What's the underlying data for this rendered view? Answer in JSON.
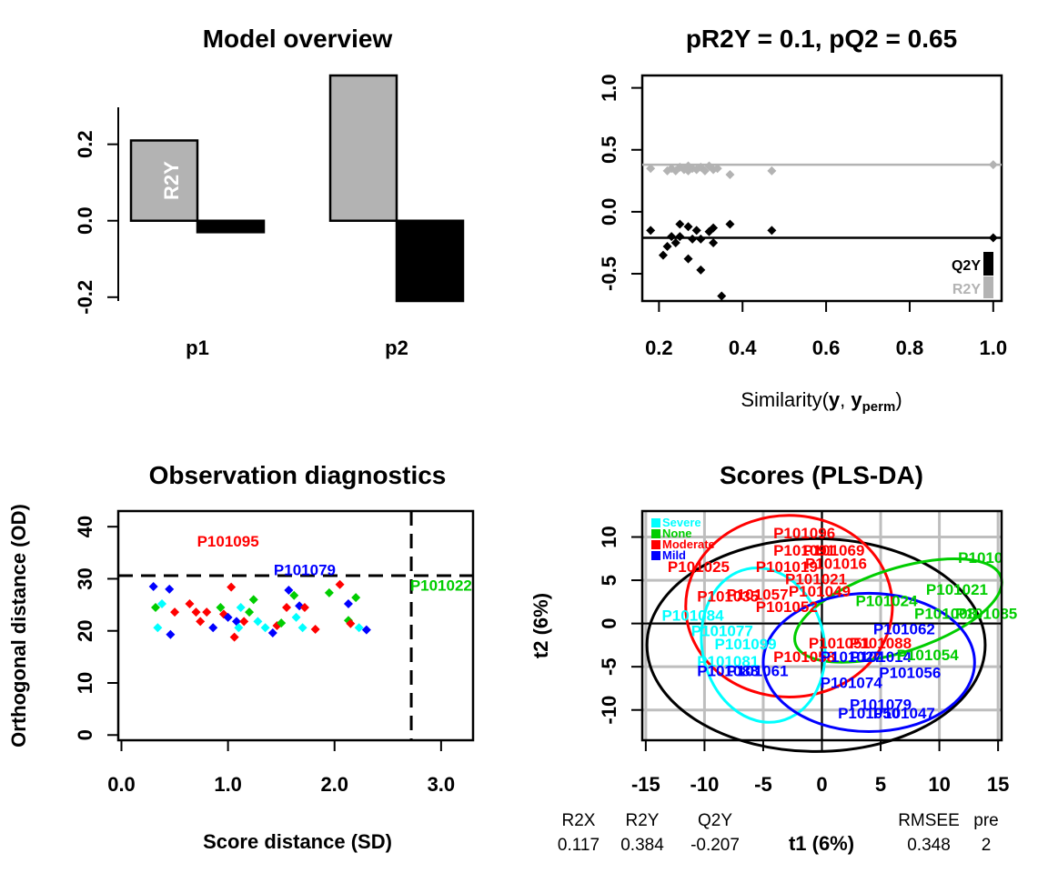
{
  "chart_data": [
    {
      "type": "bar",
      "title": "Model overview",
      "categories": [
        "p1",
        "p2"
      ],
      "series": [
        {
          "name": "R2Y",
          "values": [
            0.21,
            0.38
          ],
          "color": "#b3b3b3"
        },
        {
          "name": "Q2Y",
          "values": [
            -0.03,
            -0.21
          ],
          "color": "#000000"
        }
      ],
      "ylim": [
        -0.21,
        0.38
      ],
      "yticks": [
        "-0.2",
        "0.0",
        "0.2"
      ],
      "bar_label": "R2Y",
      "grid": false
    },
    {
      "type": "scatter",
      "title": "pR2Y = 0.1, pQ2 = 0.65",
      "xlabel": {
        "prefix": "Similarity(",
        "y": "y",
        "sep": ", ",
        "yperm": "y",
        "sub": "perm",
        "suffix": ")"
      },
      "xlim": [
        0.16,
        1.02
      ],
      "ylim": [
        -0.72,
        1.1
      ],
      "xticks": [
        "0.2",
        "0.4",
        "0.6",
        "0.8",
        "1.0"
      ],
      "yticks": [
        "-0.5",
        "0.0",
        "0.5",
        "1.0"
      ],
      "series": [
        {
          "name": "R2Y",
          "color": "#b3b3b3",
          "line": 0.38,
          "x": [
            0.18,
            0.22,
            0.23,
            0.24,
            0.25,
            0.26,
            0.27,
            0.27,
            0.28,
            0.29,
            0.3,
            0.31,
            0.32,
            0.33,
            0.34,
            0.37,
            0.47,
            1.0
          ],
          "y": [
            0.35,
            0.33,
            0.35,
            0.33,
            0.36,
            0.34,
            0.33,
            0.37,
            0.35,
            0.34,
            0.36,
            0.33,
            0.37,
            0.34,
            0.35,
            0.3,
            0.33,
            0.38
          ]
        },
        {
          "name": "Q2Y",
          "color": "#000000",
          "line": -0.21,
          "x": [
            0.18,
            0.21,
            0.22,
            0.23,
            0.24,
            0.25,
            0.25,
            0.27,
            0.27,
            0.28,
            0.29,
            0.3,
            0.3,
            0.32,
            0.33,
            0.33,
            0.35,
            0.37,
            0.47,
            1.0
          ],
          "y": [
            -0.15,
            -0.35,
            -0.28,
            -0.2,
            -0.25,
            -0.1,
            -0.2,
            -0.12,
            -0.38,
            -0.22,
            -0.15,
            -0.47,
            -0.22,
            -0.16,
            -0.25,
            -0.13,
            -0.68,
            -0.1,
            -0.15,
            -0.21
          ]
        }
      ],
      "legend": {
        "position": "bottom-right",
        "items": [
          "Q2Y",
          "R2Y"
        ]
      }
    },
    {
      "type": "scatter",
      "title": "Observation diagnostics",
      "xlabel": "Score distance (SD)",
      "ylabel": "Orthogonal distance (OD)",
      "xlim": [
        -0.03,
        3.3
      ],
      "ylim": [
        -1,
        43
      ],
      "xticks": [
        "0.0",
        "1.0",
        "2.0",
        "3.0"
      ],
      "yticks": [
        "0",
        "10",
        "20",
        "30",
        "40"
      ],
      "thresholds": {
        "sd": 2.72,
        "od": 30.6
      },
      "groups": [
        {
          "name": "Severe",
          "color": "#00ffff"
        },
        {
          "name": "None",
          "color": "#00cd00"
        },
        {
          "name": "Moderate",
          "color": "#ff0000"
        },
        {
          "name": "Mild",
          "color": "#0000ff"
        }
      ],
      "points": [
        {
          "x": 0.3,
          "y": 28.5,
          "g": 3
        },
        {
          "x": 0.45,
          "y": 28.0,
          "g": 3
        },
        {
          "x": 0.32,
          "y": 24.5,
          "g": 1
        },
        {
          "x": 0.38,
          "y": 25.2,
          "g": 0
        },
        {
          "x": 0.5,
          "y": 23.6,
          "g": 2
        },
        {
          "x": 0.34,
          "y": 20.6,
          "g": 0
        },
        {
          "x": 0.46,
          "y": 19.3,
          "g": 3
        },
        {
          "x": 0.64,
          "y": 25.2,
          "g": 2
        },
        {
          "x": 0.7,
          "y": 23.6,
          "g": 2
        },
        {
          "x": 0.74,
          "y": 21.8,
          "g": 2
        },
        {
          "x": 0.8,
          "y": 23.6,
          "g": 2
        },
        {
          "x": 0.86,
          "y": 20.6,
          "g": 3
        },
        {
          "x": 0.93,
          "y": 24.5,
          "g": 1
        },
        {
          "x": 0.96,
          "y": 23.2,
          "g": 2
        },
        {
          "x": 1.0,
          "y": 22.6,
          "g": 3
        },
        {
          "x": 1.03,
          "y": 28.4,
          "g": 2
        },
        {
          "x": 1.06,
          "y": 18.8,
          "g": 2
        },
        {
          "x": 1.08,
          "y": 21.8,
          "g": 3
        },
        {
          "x": 1.1,
          "y": 20.6,
          "g": 0
        },
        {
          "x": 1.12,
          "y": 24.5,
          "g": 0
        },
        {
          "x": 1.15,
          "y": 21.8,
          "g": 2
        },
        {
          "x": 1.2,
          "y": 23.6,
          "g": 1
        },
        {
          "x": 1.24,
          "y": 26.0,
          "g": 1
        },
        {
          "x": 1.28,
          "y": 21.8,
          "g": 0
        },
        {
          "x": 1.35,
          "y": 20.6,
          "g": 0
        },
        {
          "x": 1.42,
          "y": 19.6,
          "g": 3
        },
        {
          "x": 1.46,
          "y": 21.0,
          "g": 2
        },
        {
          "x": 1.5,
          "y": 21.5,
          "g": 1
        },
        {
          "x": 1.55,
          "y": 24.5,
          "g": 2
        },
        {
          "x": 1.57,
          "y": 27.8,
          "g": 3
        },
        {
          "x": 1.62,
          "y": 26.8,
          "g": 1
        },
        {
          "x": 1.64,
          "y": 22.6,
          "g": 0
        },
        {
          "x": 1.67,
          "y": 24.8,
          "g": 3
        },
        {
          "x": 1.7,
          "y": 20.6,
          "g": 0
        },
        {
          "x": 1.72,
          "y": 24.5,
          "g": 2
        },
        {
          "x": 1.82,
          "y": 20.3,
          "g": 2
        },
        {
          "x": 1.95,
          "y": 27.3,
          "g": 1
        },
        {
          "x": 2.05,
          "y": 28.9,
          "g": 2
        },
        {
          "x": 2.13,
          "y": 22.0,
          "g": 1
        },
        {
          "x": 2.15,
          "y": 21.4,
          "g": 2
        },
        {
          "x": 2.13,
          "y": 25.2,
          "g": 3
        },
        {
          "x": 2.2,
          "y": 26.4,
          "g": 1
        },
        {
          "x": 2.23,
          "y": 20.6,
          "g": 0
        },
        {
          "x": 2.3,
          "y": 20.2,
          "g": 3
        }
      ],
      "labels": [
        {
          "text": "P101095",
          "x": 1.0,
          "y": 37.0,
          "g": 2
        },
        {
          "text": "P101079",
          "x": 1.72,
          "y": 31.5,
          "g": 3
        },
        {
          "text": "P101022",
          "x": 3.0,
          "y": 28.5,
          "g": 1
        }
      ]
    },
    {
      "type": "scatter",
      "title": "Scores (PLS-DA)",
      "xlabel": "t1 (6%)",
      "ylabel": "t2 (6%)",
      "xlim": [
        -15.3,
        15.3
      ],
      "ylim": [
        -13.5,
        13.0
      ],
      "xticks": [
        "-15",
        "-10",
        "-5",
        "0",
        "5",
        "10",
        "15"
      ],
      "yticks": [
        "-10",
        "-5",
        "0",
        "5",
        "10"
      ],
      "grid": true,
      "legend": {
        "position": "top-left",
        "items": [
          "Severe",
          "None",
          "Moderate",
          "Mild"
        ]
      },
      "groups": [
        {
          "name": "Severe",
          "color": "#00ffff"
        },
        {
          "name": "None",
          "color": "#00cd00"
        },
        {
          "name": "Moderate",
          "color": "#ff0000"
        },
        {
          "name": "Mild",
          "color": "#0000ff"
        }
      ],
      "ellipses": [
        {
          "g": -1,
          "cx": -0.5,
          "cy": -2.5,
          "rx": 14.4,
          "ry": 12.3,
          "rot": 0
        },
        {
          "g": 2,
          "cx": -2.8,
          "cy": 2.0,
          "rx": 8.8,
          "ry": 10.5,
          "rot": 0
        },
        {
          "g": 1,
          "cx": 6.5,
          "cy": 1.5,
          "rx": 9.2,
          "ry": 4.8,
          "rot": 18
        },
        {
          "g": 0,
          "cx": -5.0,
          "cy": -2.5,
          "rx": 5.2,
          "ry": 9.0,
          "rot": 12
        },
        {
          "g": 3,
          "cx": 4.0,
          "cy": -4.5,
          "rx": 9.0,
          "ry": 8.0,
          "rot": 0
        }
      ],
      "labels": [
        {
          "text": "P101096",
          "x": -1.5,
          "y": 10.3,
          "g": 2
        },
        {
          "text": "P101091",
          "x": -1.5,
          "y": 8.3,
          "g": 2
        },
        {
          "text": "P101069",
          "x": 1.0,
          "y": 8.3,
          "g": 2
        },
        {
          "text": "P101016",
          "x": 1.2,
          "y": 6.8,
          "g": 2
        },
        {
          "text": "P101025",
          "x": -10.5,
          "y": 6.4,
          "g": 2
        },
        {
          "text": "P101019",
          "x": -3.0,
          "y": 6.4,
          "g": 2
        },
        {
          "text": "P101021",
          "x": -0.5,
          "y": 5.0,
          "g": 2
        },
        {
          "text": "P101049",
          "x": -0.2,
          "y": 3.6,
          "g": 2
        },
        {
          "text": "P101035",
          "x": -8.0,
          "y": 3.0,
          "g": 2
        },
        {
          "text": "P101057",
          "x": -5.5,
          "y": 3.2,
          "g": 2
        },
        {
          "text": "P101052",
          "x": -3.0,
          "y": 1.8,
          "g": 2
        },
        {
          "text": "P101084",
          "x": -11.0,
          "y": 0.8,
          "g": 0
        },
        {
          "text": "P101077",
          "x": -8.5,
          "y": -1.0,
          "g": 0
        },
        {
          "text": "P101099",
          "x": -6.5,
          "y": -2.5,
          "g": 0
        },
        {
          "text": "P101081",
          "x": -8.0,
          "y": -4.5,
          "g": 0
        },
        {
          "text": "P101088",
          "x": -8.0,
          "y": -5.6,
          "g": 3
        },
        {
          "text": "P101061",
          "x": -5.5,
          "y": -5.6,
          "g": 3
        },
        {
          "text": "P101058",
          "x": -1.5,
          "y": -4.0,
          "g": 2
        },
        {
          "text": "P101051",
          "x": 1.5,
          "y": -2.4,
          "g": 2
        },
        {
          "text": "P101088",
          "x": 5.0,
          "y": -2.4,
          "g": 2
        },
        {
          "text": "P101027",
          "x": 2.5,
          "y": -4.0,
          "g": 3
        },
        {
          "text": "P101014",
          "x": 5.0,
          "y": -4.0,
          "g": 3
        },
        {
          "text": "P101024",
          "x": 5.5,
          "y": 2.5,
          "g": 1
        },
        {
          "text": "P101008",
          "x": 10.5,
          "y": 1.0,
          "g": 1
        },
        {
          "text": "P101085",
          "x": 14.0,
          "y": 1.0,
          "g": 1
        },
        {
          "text": "P101021",
          "x": 11.5,
          "y": 3.8,
          "g": 1
        },
        {
          "text": "P1010",
          "x": 13.5,
          "y": 7.5,
          "g": 1
        },
        {
          "text": "P101062",
          "x": 7.0,
          "y": -0.8,
          "g": 3
        },
        {
          "text": "P101054",
          "x": 9.0,
          "y": -3.8,
          "g": 1
        },
        {
          "text": "P101056",
          "x": 7.5,
          "y": -5.8,
          "g": 3
        },
        {
          "text": "P101074",
          "x": 2.5,
          "y": -7.0,
          "g": 3
        },
        {
          "text": "P101079",
          "x": 5.0,
          "y": -9.5,
          "g": 3
        },
        {
          "text": "P101047",
          "x": 7.0,
          "y": -10.5,
          "g": 3
        },
        {
          "text": "P101050",
          "x": 4.0,
          "y": -10.5,
          "g": 3
        }
      ]
    }
  ],
  "model_summary": {
    "headers": [
      "R2X",
      "R2Y",
      "Q2Y",
      "RMSEE",
      "pre"
    ],
    "values": [
      "0.117",
      "0.384",
      "-0.207",
      "0.348",
      "2"
    ]
  }
}
